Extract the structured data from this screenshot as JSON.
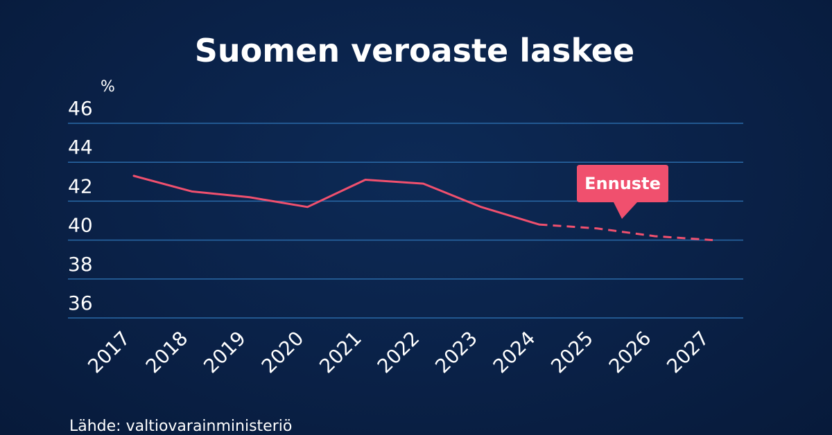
{
  "colors": {
    "background": "#0a2147",
    "grid": "#2a6aa8",
    "line": "#f0506e",
    "callout": "#f0506e",
    "text": "#ffffff"
  },
  "chart_data": {
    "type": "line",
    "title": "Suomen veroaste laskee",
    "ylabel": "%",
    "xlabel": "",
    "ylim": [
      35.5,
      46.5
    ],
    "yticks": [
      46,
      44,
      42,
      40,
      38,
      36
    ],
    "categories": [
      "2017",
      "2018",
      "2019",
      "2020",
      "2021",
      "2022",
      "2023",
      "2024",
      "2025",
      "2026",
      "2027"
    ],
    "series": [
      {
        "values": [
          43.3,
          42.5,
          42.2,
          41.7,
          43.1,
          42.9,
          41.7,
          40.8,
          40.6,
          40.2,
          40.0
        ],
        "forecast_from_index": 7
      }
    ],
    "annotation": {
      "label": "Ennuste"
    },
    "grid": true,
    "source": "Lähde: valtiovarainministeriö"
  }
}
